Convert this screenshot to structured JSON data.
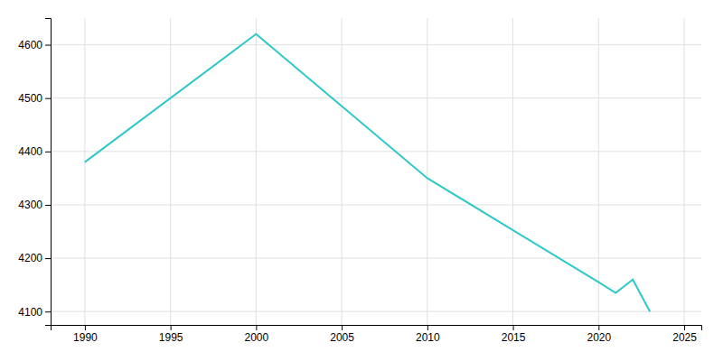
{
  "chart_data": {
    "type": "line",
    "x": [
      1990,
      2000,
      2010,
      2020,
      2021,
      2022,
      2023
    ],
    "values": [
      4380,
      4620,
      4350,
      4155,
      4135,
      4160,
      4100
    ],
    "color": "#2ec8c8",
    "xlim": [
      1988,
      2026
    ],
    "ylim": [
      4075,
      4650
    ],
    "xticks": [
      1990,
      1995,
      2000,
      2005,
      2010,
      2015,
      2020,
      2025
    ],
    "yticks": [
      4100,
      4200,
      4300,
      4400,
      4500,
      4600
    ],
    "grid": true
  }
}
